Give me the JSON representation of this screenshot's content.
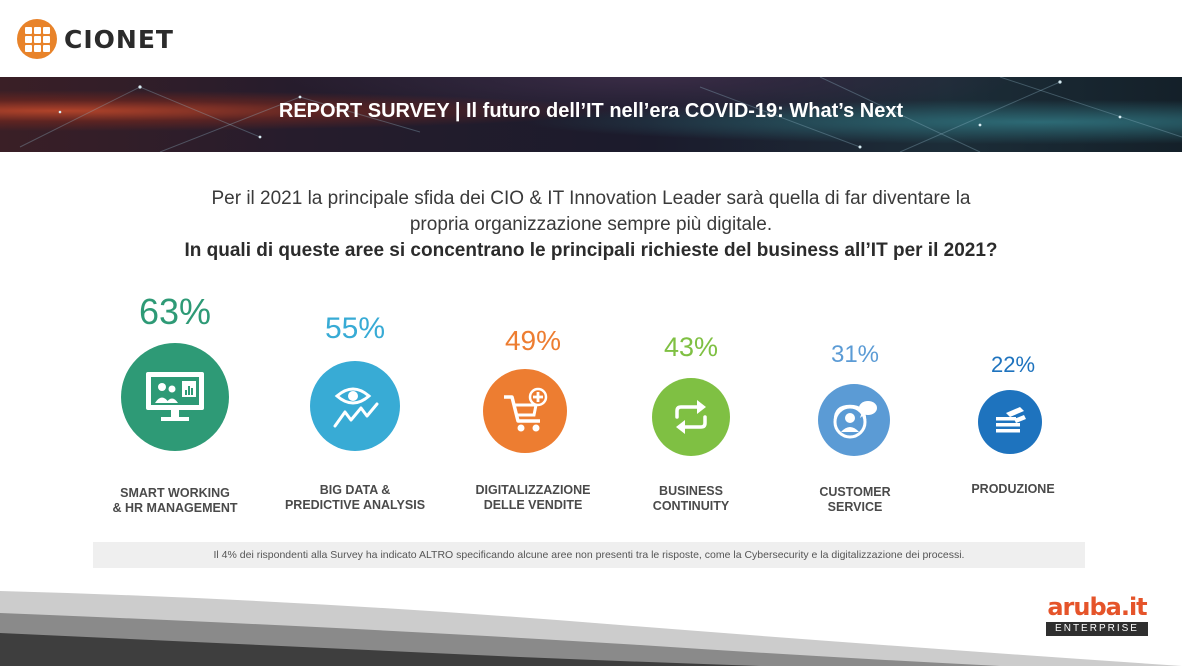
{
  "brand": {
    "name": "CIONET"
  },
  "banner": {
    "title": "REPORT SURVEY  | Il futuro dell’IT nell’era COVID-19: What’s Next"
  },
  "intro": {
    "line1": "Per il 2021 la principale sfida dei CIO & IT Innovation Leader sarà quella di far diventare la",
    "line2": "propria organizzazione sempre più digitale.",
    "question": "In quali di queste aree si concentrano le principali richieste del business all’IT per il 2021?"
  },
  "areas": [
    {
      "percent": "63%",
      "value": 63,
      "line1": "SMART WORKING",
      "line2": "& HR MANAGEMENT",
      "color": "#2e9a76",
      "icon": "presentation-icon"
    },
    {
      "percent": "55%",
      "value": 55,
      "line1": "BIG DATA &",
      "line2": "PREDICTIVE ANALYSIS",
      "color": "#38abd5",
      "icon": "eye-trend-icon"
    },
    {
      "percent": "49%",
      "value": 49,
      "line1": "DIGITALIZZAZIONE",
      "line2": "DELLE VENDITE",
      "color": "#ed7d31",
      "icon": "cart-plus-icon"
    },
    {
      "percent": "43%",
      "value": 43,
      "line1": "BUSINESS",
      "line2": "CONTINUITY",
      "color": "#7fc043",
      "icon": "repeat-arrows-icon"
    },
    {
      "percent": "31%",
      "value": 31,
      "line1": "CUSTOMER",
      "line2": "SERVICE",
      "color": "#5b9bd5",
      "icon": "support-agent-icon"
    },
    {
      "percent": "22%",
      "value": 22,
      "line1": "PRODUZIONE",
      "line2": "",
      "color": "#1e73be",
      "icon": "stacked-layers-icon"
    }
  ],
  "note": "Il 4% dei rispondenti alla Survey ha indicato ALTRO specificando alcune aree non presenti tra le risposte, come la Cybersecurity e la digitalizzazione dei processi.",
  "footer_brand": {
    "name": "aruba.it",
    "tagline": "ENTERPRISE"
  }
}
